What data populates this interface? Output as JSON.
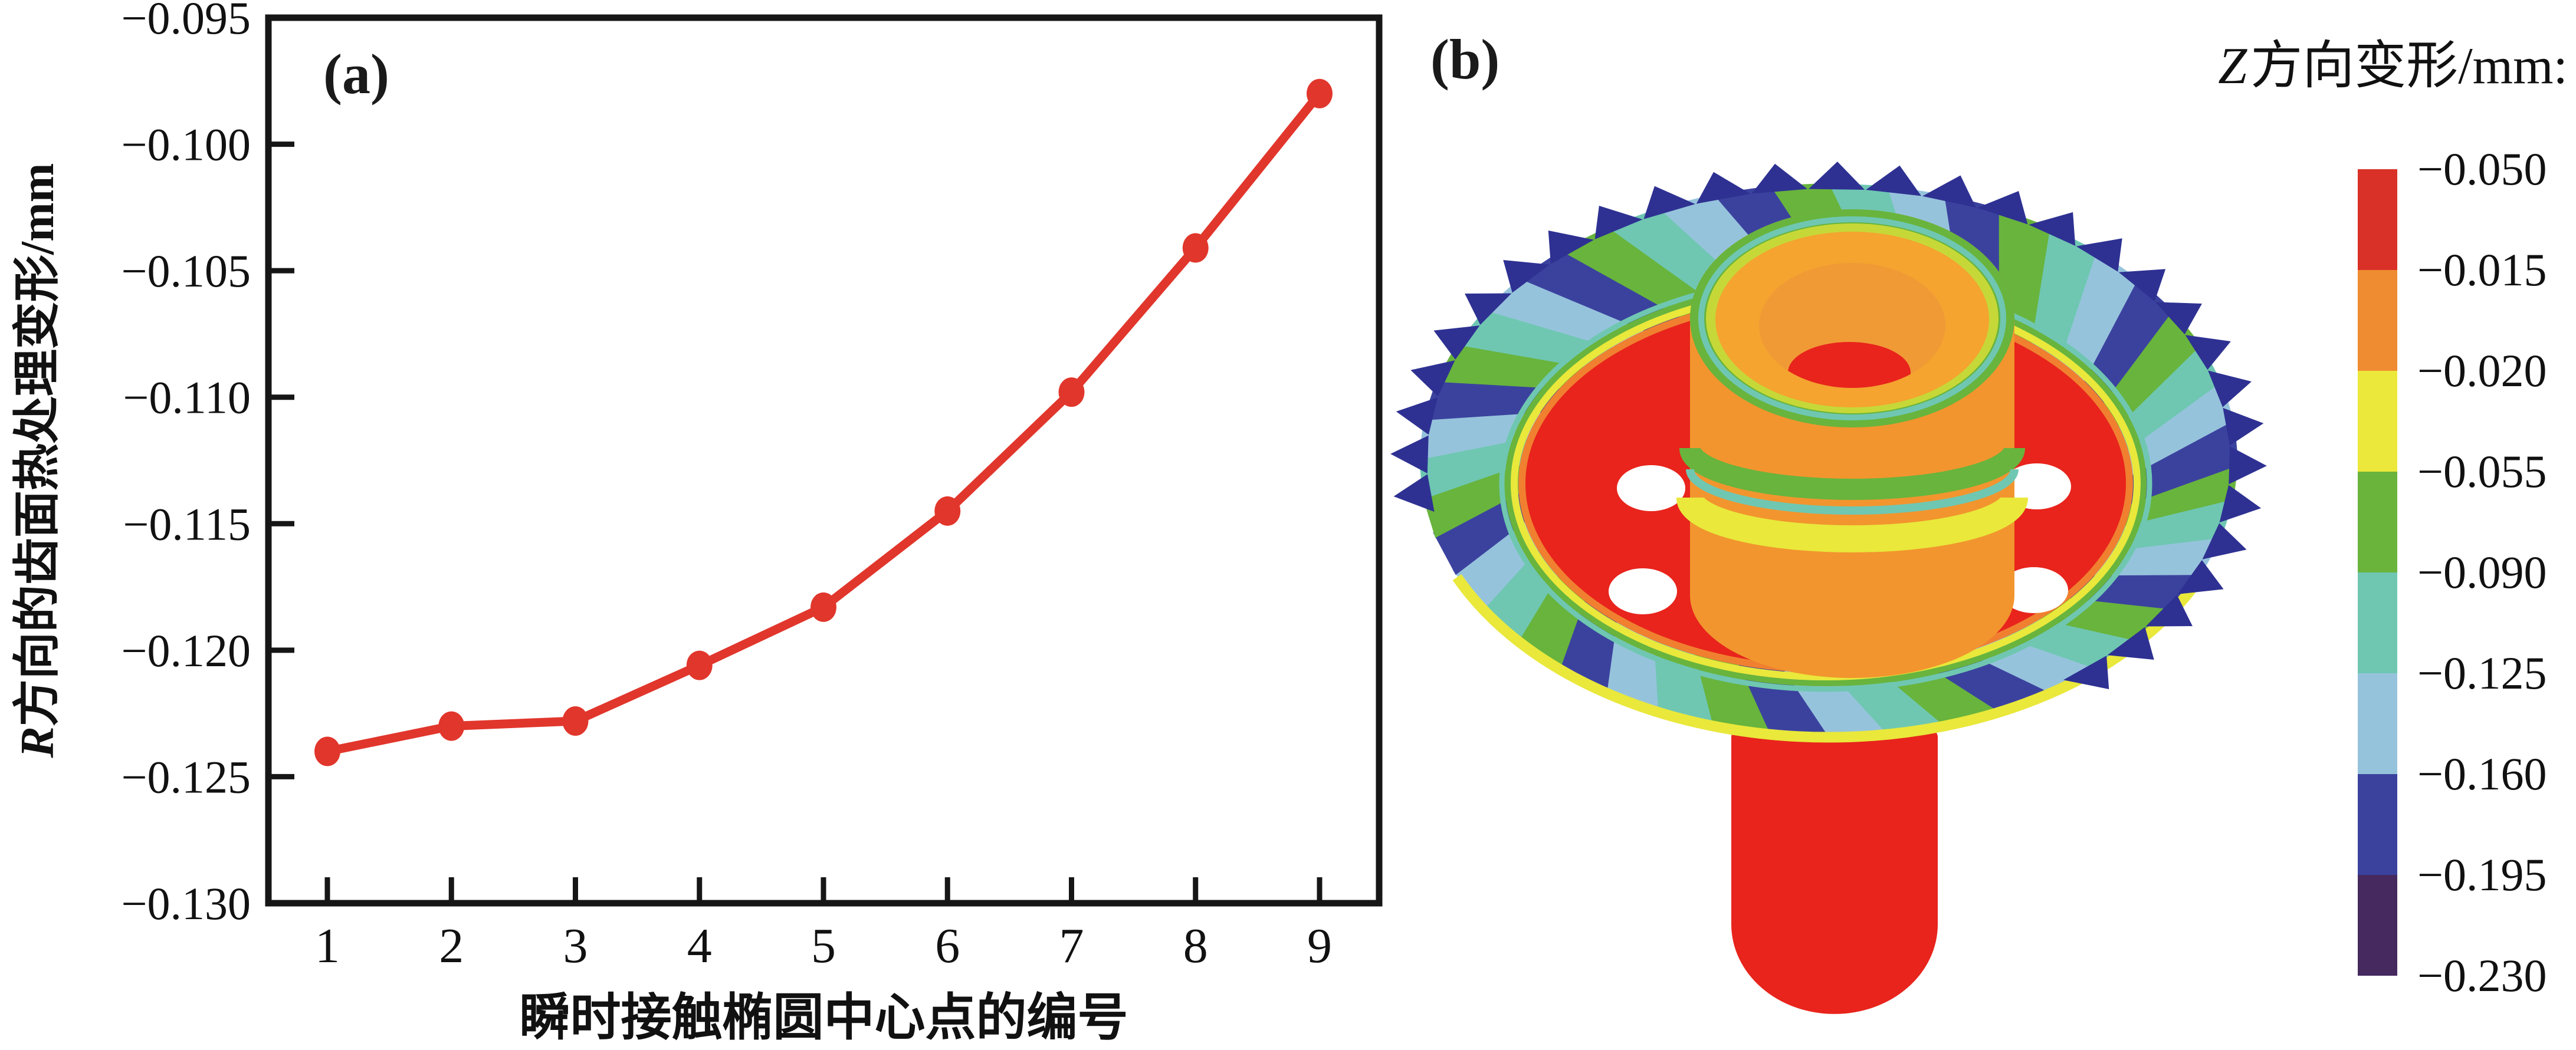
{
  "panel_a": {
    "label": "(a)"
  },
  "chart_data": {
    "type": "line",
    "x": [
      1,
      2,
      3,
      4,
      5,
      6,
      7,
      8,
      9
    ],
    "values": [
      -0.124,
      -0.123,
      -0.1228,
      -0.1206,
      -0.1183,
      -0.1145,
      -0.1098,
      -0.1041,
      -0.098
    ],
    "xticks": [
      "1",
      "2",
      "3",
      "4",
      "5",
      "6",
      "7",
      "8",
      "9"
    ],
    "yticks": [
      "−0.095",
      "−0.100",
      "−0.105",
      "−0.110",
      "−0.115",
      "−0.120",
      "−0.125",
      "−0.130"
    ],
    "ylim": [
      -0.13,
      -0.095
    ],
    "xlabel": "瞬时接触椭圆中心点的编号",
    "ylabel_prefix": "R",
    "ylabel_rest": "方向的齿面热处理变形/mm",
    "line_color": "#e1362c",
    "marker": "circle",
    "grid": false,
    "legend_position": "none"
  },
  "panel_b": {
    "label": "(b)",
    "legend": {
      "title_prefix": "Z",
      "title_rest": "方向变形/mm:",
      "tick_labels": [
        "−0.050",
        "−0.015",
        "−0.020",
        "−0.055",
        "−0.090",
        "−0.125",
        "−0.160",
        "−0.195",
        "−0.230"
      ],
      "block_colors": [
        "#d93127",
        "#ef8c31",
        "#ece83b",
        "#6ab43c",
        "#6fc7b2",
        "#96c3dc",
        "#3b429e",
        "#45295f"
      ]
    },
    "gear": {
      "red": "#e8241c",
      "orange_wall": "#f2952e",
      "orange_top": "#f4a42f",
      "bore": "#f09a36",
      "yellow": "#e9e83b",
      "yellow_green": "#c6d838",
      "green": "#68b43d",
      "teal": "#6fc7b2",
      "light_blue": "#96c3dc",
      "indigo": "#3b429e",
      "dark_blue": "#2e3192",
      "dark_purple": "#45295f",
      "hole": "#ffffff"
    }
  }
}
